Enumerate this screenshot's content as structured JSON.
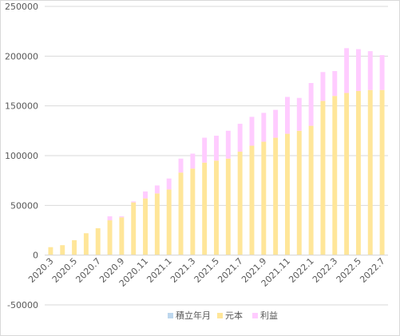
{
  "chart_data": {
    "type": "bar",
    "stacked": true,
    "categories": [
      "2020.3",
      "2020.4",
      "2020.5",
      "2020.6",
      "2020.7",
      "2020.8",
      "2020.9",
      "2020.10",
      "2020.11",
      "2020.12",
      "2021.1",
      "2021.2",
      "2021.3",
      "2021.4",
      "2021.5",
      "2021.6",
      "2021.7",
      "2021.8",
      "2021.9",
      "2021.10",
      "2021.11",
      "2021.12",
      "2022.1",
      "2022.2",
      "2022.3",
      "2022.4",
      "2022.5",
      "2022.6",
      "2022.7"
    ],
    "x_tick_labels": [
      "2020.3",
      "2020.5",
      "2020.7",
      "2020.9",
      "2020.11",
      "2021.1",
      "2021.3",
      "2021.5",
      "2021.7",
      "2021.9",
      "2021.11",
      "2022.1",
      "2022.3",
      "2022.5",
      "2022.7"
    ],
    "series": [
      {
        "name": "積立年月",
        "color": "#bdd7ee",
        "values": [
          0,
          0,
          0,
          0,
          0,
          0,
          0,
          0,
          0,
          0,
          0,
          0,
          0,
          0,
          0,
          0,
          0,
          0,
          0,
          0,
          0,
          0,
          0,
          0,
          0,
          0,
          0,
          0,
          0
        ]
      },
      {
        "name": "元本",
        "color": "#ffe699",
        "values": [
          8000,
          10000,
          15000,
          22000,
          27000,
          35000,
          38000,
          53000,
          57000,
          62000,
          66000,
          83000,
          87000,
          93000,
          95000,
          97000,
          104000,
          110000,
          114000,
          118000,
          122000,
          125000,
          130000,
          155000,
          160000,
          163000,
          165000,
          166000,
          166000
        ]
      },
      {
        "name": "利益",
        "color": "#ffccff",
        "values": [
          0,
          0,
          0,
          0,
          0,
          4000,
          1000,
          1000,
          7000,
          8000,
          11000,
          14000,
          15000,
          25000,
          25000,
          28000,
          28000,
          29000,
          29000,
          28000,
          37000,
          33000,
          43000,
          29000,
          25000,
          45000,
          42000,
          39000,
          35000
        ]
      }
    ],
    "ylim": [
      -50000,
      250000
    ],
    "yticks": [
      -50000,
      0,
      50000,
      100000,
      150000,
      200000,
      250000
    ],
    "grid": true,
    "legend_position": "bottom",
    "xlabel": "",
    "ylabel": ""
  }
}
